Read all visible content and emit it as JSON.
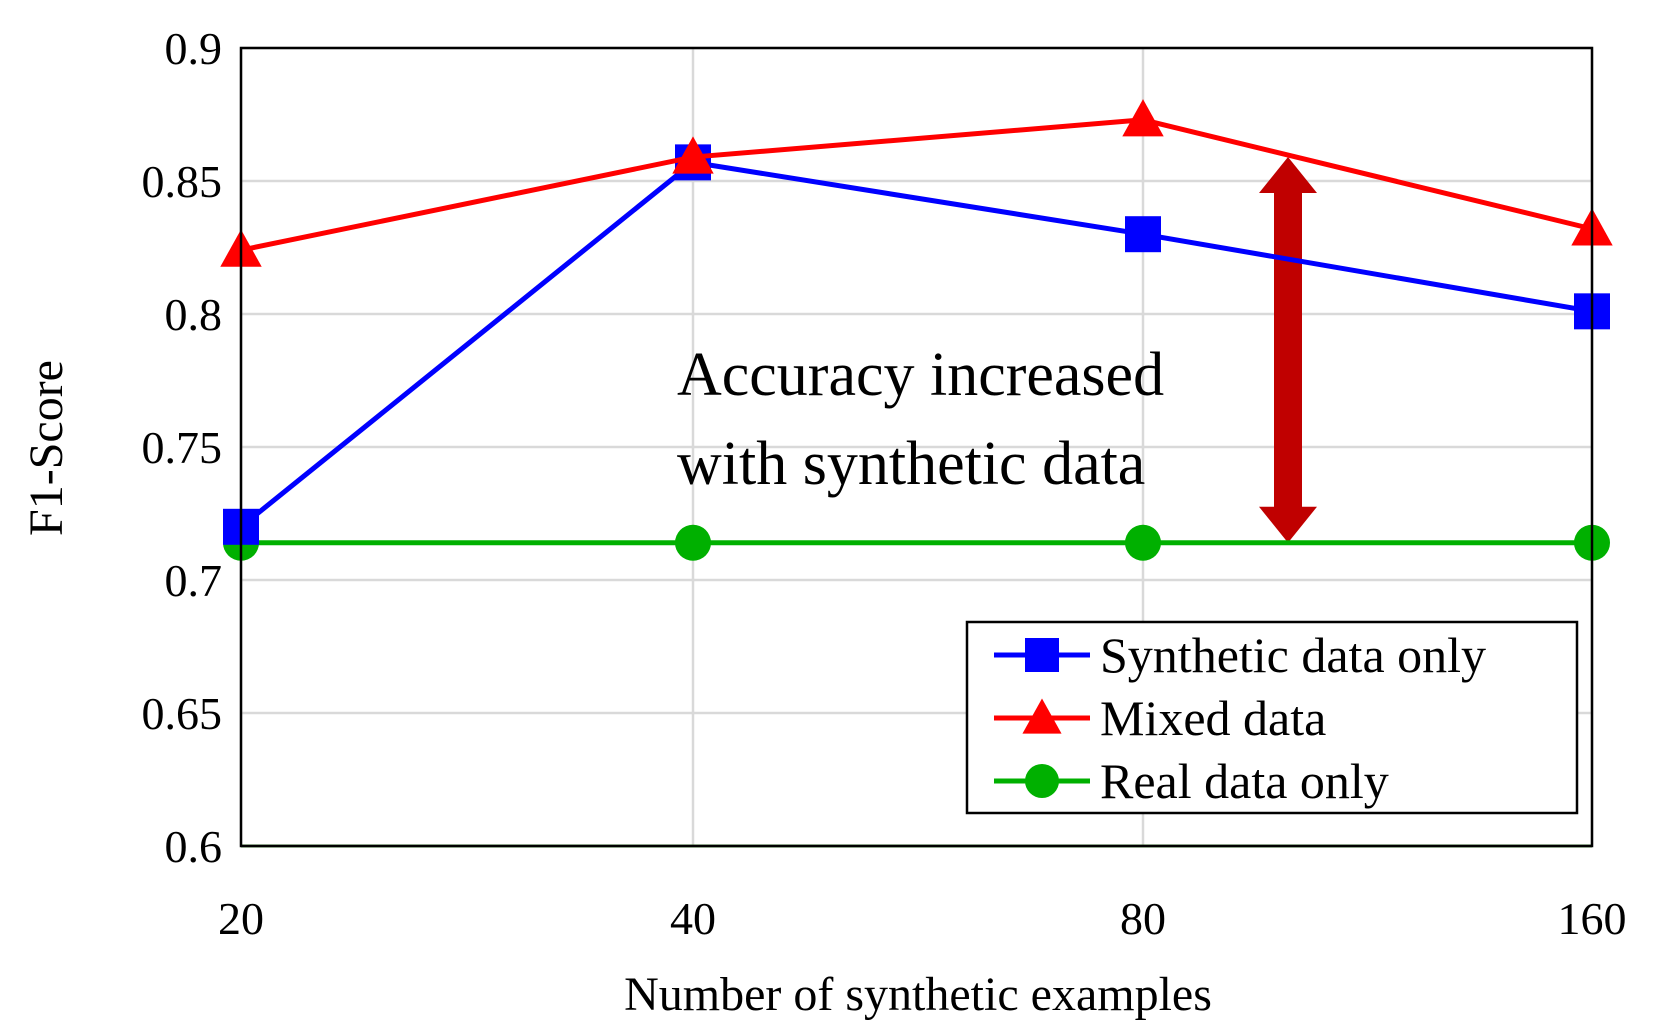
{
  "chart_data": {
    "type": "line",
    "title": "",
    "xlabel": "Number of synthetic examples",
    "ylabel": "F1-Score",
    "categories": [
      "20",
      "40",
      "80",
      "160"
    ],
    "ylim": [
      0.6,
      0.9
    ],
    "yticks": [
      "0.6",
      "0.65",
      "0.7",
      "0.75",
      "0.8",
      "0.85",
      "0.9"
    ],
    "grid": true,
    "legend_position": "bottom-right",
    "series": [
      {
        "name": "Synthetic data only",
        "color": "#0000ff",
        "marker": "square",
        "values": [
          0.72,
          0.857,
          0.83,
          0.801
        ]
      },
      {
        "name": "Mixed data",
        "color": "#ff0000",
        "marker": "triangle",
        "values": [
          0.824,
          0.859,
          0.873,
          0.832
        ]
      },
      {
        "name": "Real data only",
        "color": "#00b000",
        "marker": "circle",
        "values": [
          0.714,
          0.714,
          0.714,
          0.714
        ]
      }
    ],
    "annotation": {
      "lines": [
        "Accuracy increased",
        "with synthetic data"
      ],
      "arrow_color": "#c00000",
      "arrow_from": 0.714,
      "arrow_to": 0.859
    }
  }
}
